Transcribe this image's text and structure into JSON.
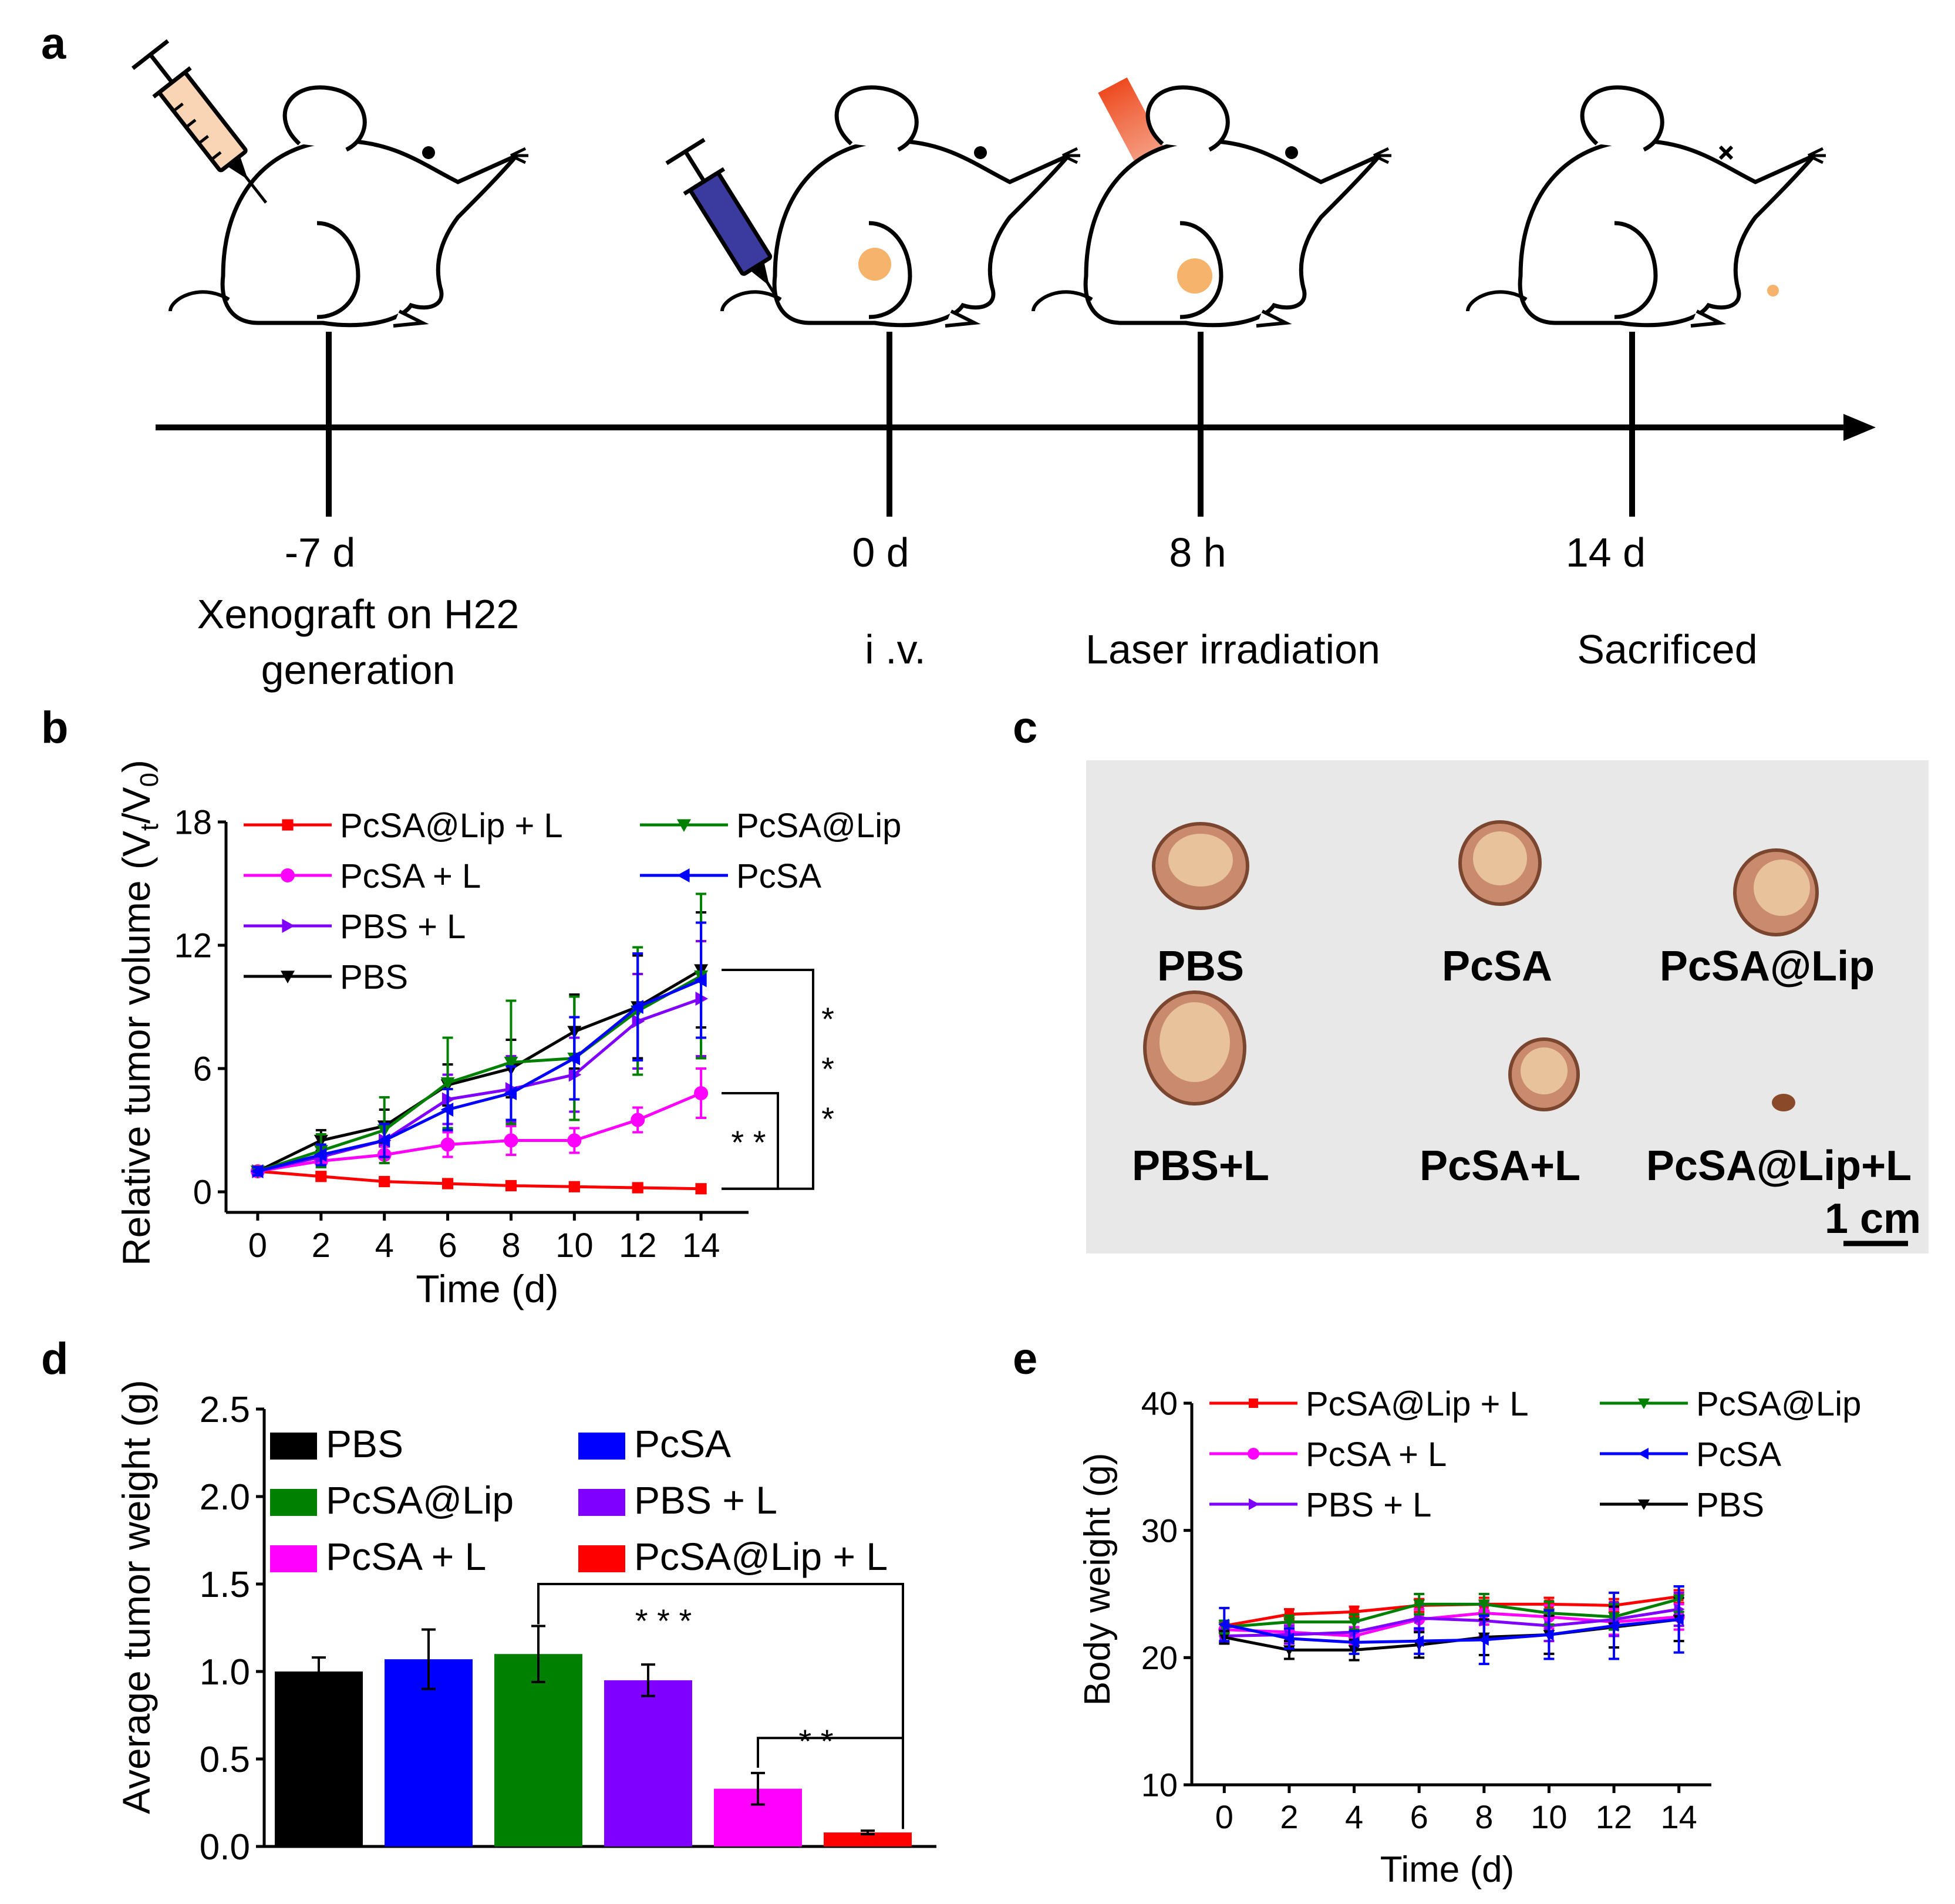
{
  "panel_labels": {
    "a": "a",
    "b": "b",
    "c": "c",
    "d": "d",
    "e": "e"
  },
  "colors": {
    "PcSA@Lip + L": "#ff0000",
    "PcSA@Lip": "#008000",
    "PcSA + L": "#ff00ff",
    "PcSA": "#0000ff",
    "PBS + L": "#8000ff",
    "PBS": "#000000",
    "tumor": "#f6b36b",
    "laser": "#ee4a1f"
  },
  "timeline": {
    "events": [
      {
        "time": "-7 d",
        "label_lines": [
          "Xenograft on H22",
          "generation"
        ]
      },
      {
        "time": "0 d",
        "label_lines": [
          "i .v."
        ]
      },
      {
        "time": "8 h",
        "label_lines": [
          "Laser irradiation"
        ]
      },
      {
        "time": "14 d",
        "label_lines": [
          "Sacrificed"
        ]
      }
    ]
  },
  "photos": {
    "labels": [
      "PBS",
      "PcSA",
      "PcSA@Lip",
      "PBS+L",
      "PcSA+L",
      "PcSA@Lip+L"
    ],
    "scale_bar": "1 cm"
  },
  "chart_data": [
    {
      "id": "b",
      "type": "line",
      "xlabel": "Time (d)",
      "ylabel": "Relative tumor volume (Vt/V0)",
      "ylabel_parts": {
        "main": "Relative tumor volume (V",
        "sub1": "t",
        "mid": "/V",
        "sub2": "0",
        "end": ")"
      },
      "x": [
        0,
        2,
        4,
        6,
        8,
        10,
        12,
        14
      ],
      "xticks": [
        0,
        2,
        4,
        6,
        8,
        10,
        12,
        14
      ],
      "yticks": [
        0,
        6,
        12,
        18
      ],
      "xlim": [
        -1,
        15.5
      ],
      "ylim": [
        -1,
        18
      ],
      "series": [
        {
          "name": "PcSA@Lip + L",
          "marker": "square",
          "values": [
            1.0,
            0.75,
            0.5,
            0.4,
            0.3,
            0.25,
            0.2,
            0.15
          ],
          "errors": [
            0.1,
            0.15,
            0.1,
            0.1,
            0.1,
            0.1,
            0.1,
            0.1
          ]
        },
        {
          "name": "PcSA + L",
          "marker": "circle",
          "values": [
            1.0,
            1.5,
            1.8,
            2.3,
            2.5,
            2.5,
            3.5,
            4.8
          ],
          "errors": [
            0.2,
            0.3,
            0.4,
            0.6,
            0.7,
            0.6,
            0.6,
            1.2
          ]
        },
        {
          "name": "PBS + L",
          "marker": "triangle-right",
          "values": [
            1.0,
            1.7,
            2.5,
            4.5,
            5.0,
            5.7,
            8.3,
            9.4
          ],
          "errors": [
            0.2,
            0.5,
            0.8,
            1.2,
            1.6,
            1.8,
            2.3,
            2.8
          ]
        },
        {
          "name": "PBS",
          "marker": "triangle-down",
          "values": [
            1.0,
            2.5,
            3.2,
            5.2,
            6.0,
            7.8,
            9.0,
            10.8
          ],
          "errors": [
            0.2,
            0.5,
            0.8,
            1.0,
            1.4,
            1.8,
            2.5,
            2.8
          ]
        },
        {
          "name": "PcSA@Lip",
          "marker": "triangle-down",
          "values": [
            1.0,
            2.0,
            3.0,
            5.3,
            6.3,
            6.5,
            8.8,
            10.5
          ],
          "errors": [
            0.2,
            0.8,
            1.6,
            2.2,
            3.0,
            3.0,
            3.1,
            4.0
          ]
        },
        {
          "name": "PcSA",
          "marker": "triangle-left",
          "values": [
            1.0,
            1.8,
            2.5,
            4.0,
            4.8,
            6.5,
            9.0,
            10.3
          ],
          "errors": [
            0.2,
            0.5,
            0.8,
            1.0,
            1.3,
            2.0,
            2.6,
            2.8
          ]
        }
      ],
      "legend": {
        "columns": [
          [
            "PcSA@Lip + L",
            "PcSA + L",
            "PBS + L",
            "PBS"
          ],
          [
            "PcSA@Lip",
            "PcSA"
          ]
        ]
      },
      "significance": [
        {
          "label": "* * *",
          "from": "PBS",
          "to": "PcSA@Lip + L"
        },
        {
          "label": "* *",
          "from": "PcSA + L",
          "to": "PcSA@Lip + L"
        }
      ]
    },
    {
      "id": "d",
      "type": "bar",
      "ylabel": "Average tumor weight (g)",
      "categories": [
        "PBS",
        "PcSA",
        "PcSA@Lip",
        "PBS + L",
        "PcSA + L",
        "PcSA@Lip + L"
      ],
      "values": [
        1.0,
        1.07,
        1.1,
        0.95,
        0.33,
        0.08
      ],
      "errors": [
        0.08,
        0.17,
        0.16,
        0.09,
        0.09,
        0.01
      ],
      "ylim": [
        0,
        2.5
      ],
      "yticks": [
        "0.0",
        "0.5",
        "1.0",
        "1.5",
        "2.0",
        "2.5"
      ],
      "legend": {
        "columns": [
          [
            "PBS",
            "PcSA@Lip",
            "PcSA + L"
          ],
          [
            "PcSA",
            "PBS + L",
            "PcSA@Lip + L"
          ]
        ]
      },
      "significance": [
        {
          "label": "* * *",
          "from": "PcSA@Lip",
          "to": "PcSA@Lip + L"
        },
        {
          "label": "* *",
          "from": "PcSA + L",
          "to": "PcSA@Lip + L"
        }
      ]
    },
    {
      "id": "e",
      "type": "line",
      "xlabel": "Time (d)",
      "ylabel": "Body weight (g)",
      "x": [
        0,
        2,
        4,
        6,
        8,
        10,
        12,
        14
      ],
      "xticks": [
        0,
        2,
        4,
        6,
        8,
        10,
        12,
        14
      ],
      "yticks": [
        10,
        20,
        30,
        40
      ],
      "xlim": [
        -1,
        15
      ],
      "ylim": [
        10,
        40
      ],
      "series": [
        {
          "name": "PcSA@Lip + L",
          "marker": "square",
          "values": [
            22.5,
            23.4,
            23.6,
            24.1,
            24.2,
            24.2,
            24.1,
            24.8
          ],
          "errors": [
            0.4,
            0.4,
            0.4,
            0.5,
            0.5,
            0.5,
            0.5,
            0.5
          ]
        },
        {
          "name": "PcSA + L",
          "marker": "circle",
          "values": [
            22.2,
            22.0,
            21.7,
            23.0,
            23.5,
            23.2,
            22.8,
            23.2
          ],
          "errors": [
            0.5,
            0.7,
            0.7,
            0.8,
            0.9,
            0.9,
            1.0,
            1.0
          ]
        },
        {
          "name": "PBS + L",
          "marker": "triangle-right",
          "values": [
            21.7,
            21.8,
            22.0,
            23.1,
            22.9,
            22.5,
            23.0,
            23.8
          ],
          "errors": [
            0.5,
            0.7,
            0.8,
            1.0,
            1.2,
            1.2,
            1.3,
            1.3
          ]
        },
        {
          "name": "PBS",
          "marker": "triangle-down",
          "values": [
            21.6,
            20.6,
            20.6,
            21.0,
            21.6,
            21.8,
            22.4,
            23.0
          ],
          "errors": [
            0.5,
            0.7,
            0.8,
            1.0,
            1.4,
            1.5,
            1.6,
            1.7
          ]
        },
        {
          "name": "PcSA@Lip",
          "marker": "triangle-down",
          "values": [
            22.4,
            22.8,
            22.8,
            24.2,
            24.2,
            23.5,
            23.2,
            24.6
          ],
          "errors": [
            0.5,
            0.5,
            0.6,
            0.8,
            0.8,
            0.9,
            1.0,
            1.0
          ]
        },
        {
          "name": "PcSA",
          "marker": "triangle-left",
          "values": [
            22.6,
            21.5,
            21.2,
            21.3,
            21.4,
            21.8,
            22.5,
            23.0
          ],
          "errors": [
            1.3,
            0.8,
            0.9,
            1.0,
            1.9,
            1.9,
            2.6,
            2.6
          ]
        }
      ],
      "legend": {
        "columns": [
          [
            "PcSA@Lip + L",
            "PcSA + L",
            "PBS + L"
          ],
          [
            "PcSA@Lip",
            "PcSA",
            "PBS"
          ]
        ]
      }
    }
  ]
}
